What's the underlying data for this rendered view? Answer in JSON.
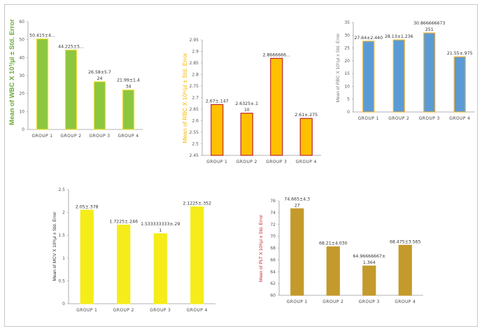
{
  "chart_data": [
    {
      "id": "wbc",
      "type": "bar",
      "ylabel": "Mean of WBC X 10³/µl ± Std. Error",
      "ylabel_color": "#6aaa3a",
      "categories": [
        "GROUP 1",
        "GROUP 2",
        "GROUP 3",
        "GROUP 4"
      ],
      "values": [
        50.415,
        44.225,
        26.58,
        21.99
      ],
      "data_labels": [
        [
          "50.415±4..."
        ],
        [
          "44.225±5..."
        ],
        [
          "26.58±5.7",
          "24"
        ],
        [
          "21.99±1.4",
          "34"
        ]
      ],
      "ylim": [
        0,
        60
      ],
      "yticks": [
        0,
        10,
        20,
        30,
        40,
        50,
        60
      ],
      "bar_color": "#8dc63f",
      "bar_edge": "#f2e03a",
      "grid": false
    },
    {
      "id": "rbc",
      "type": "bar",
      "ylabel": "Mean of RBC X 10⁶/µl ± Std. Error",
      "ylabel_color": "#f5b800",
      "categories": [
        "GROUP 1",
        "GROUP 2",
        "GROUP 3",
        "GROUP 4"
      ],
      "values": [
        2.67,
        2.6325,
        2.87,
        2.61
      ],
      "data_labels": [
        [
          "2.67±.147"
        ],
        [
          "2.6325±.1",
          "10"
        ],
        [
          "2.8666666..."
        ],
        [
          "2.61±.275"
        ]
      ],
      "ylim": [
        2.45,
        2.95
      ],
      "yticks": [
        2.45,
        2.5,
        2.55,
        2.6,
        2.65,
        2.7,
        2.75,
        2.8,
        2.85,
        2.9,
        2.95
      ],
      "ytick_labels": [
        "2.45",
        "2.5",
        "2.55",
        "2.6",
        "2.65",
        "2.7",
        "2.75",
        "2.8",
        "2.85",
        "2.9",
        "2.95"
      ],
      "bar_color": "#ffc000",
      "bar_edge": "#c0262d",
      "grid": false
    },
    {
      "id": "hb",
      "type": "bar",
      "ylabel": "Mean of RBC X 10⁶/µl ± Std. Error",
      "ylabel_color": "#7a7a7a",
      "categories": [
        "GROUP 1",
        "GROUP 2",
        "GROUP 3",
        "GROUP 4"
      ],
      "values": [
        27.64,
        28.13,
        30.87,
        21.55
      ],
      "data_labels": [
        [
          "27.64±2.440"
        ],
        [
          "28.13±1.236"
        ],
        [
          "30.866666673",
          "251"
        ],
        [
          "21.55±.975"
        ]
      ],
      "ylim": [
        0,
        35
      ],
      "yticks": [
        0,
        5,
        10,
        15,
        20,
        25,
        30,
        35
      ],
      "bar_color": "#5b9bd5",
      "bar_edge": "#f2b233",
      "grid": false
    },
    {
      "id": "mcv",
      "type": "bar",
      "ylabel": "Mean of MCV X 10³/µl ± Std. Error",
      "ylabel_color": "#333333",
      "categories": [
        "GROUP 1",
        "GROUP 2",
        "GROUP 3",
        "GROUP 4"
      ],
      "values": [
        2.05,
        1.7225,
        1.5333,
        2.1225
      ],
      "data_labels": [
        [
          "2.05±.378"
        ],
        [
          "1.7225±.246"
        ],
        [
          "1.533333333±.29",
          "1"
        ],
        [
          "2.1225±.352"
        ]
      ],
      "ylim": [
        0,
        2.5
      ],
      "yticks": [
        0,
        0.5,
        1,
        1.5,
        2,
        2.5
      ],
      "ytick_labels": [
        "0",
        "0.5",
        "1",
        "1.5",
        "2",
        "2.5"
      ],
      "bar_color": "#f5ec1a",
      "bar_edge": "#f5ec1a",
      "grid": false
    },
    {
      "id": "plt",
      "type": "bar",
      "ylabel": "Mean of PLT X 10³/µl ± Std. Error",
      "ylabel_color": "#c0262d",
      "categories": [
        "GROUP 1",
        "GROUP 2",
        "GROUP 3",
        "GROUP 4"
      ],
      "values": [
        74.665,
        68.21,
        64.97,
        68.475
      ],
      "data_labels": [
        [
          "74.665±4.3",
          "27"
        ],
        [
          "68.21±4.030"
        ],
        [
          "64.96666667±",
          "1.364"
        ],
        [
          "68.475±3.565"
        ]
      ],
      "ylim": [
        60,
        76
      ],
      "yticks": [
        60,
        62,
        64,
        66,
        68,
        70,
        72,
        74,
        76
      ],
      "bar_color": "#c49a2c",
      "bar_edge": "#c49a2c",
      "grid": false
    }
  ]
}
